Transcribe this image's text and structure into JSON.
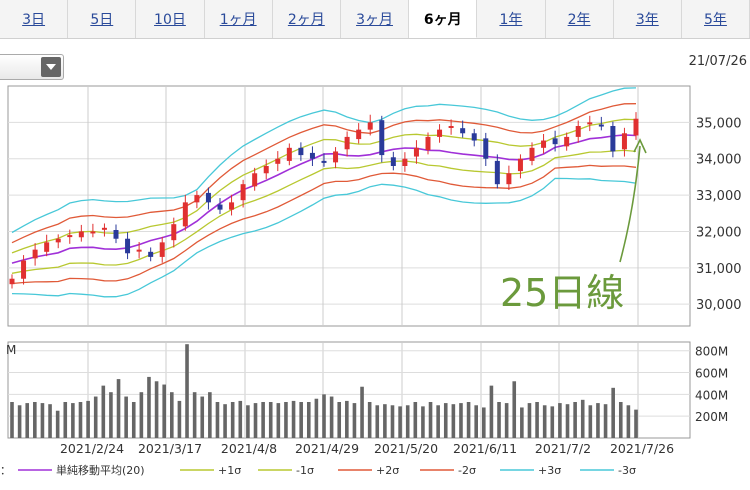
{
  "tabs": [
    {
      "label": "3日",
      "active": false
    },
    {
      "label": "5日",
      "active": false
    },
    {
      "label": "10日",
      "active": false
    },
    {
      "label": "1ヶ月",
      "active": false
    },
    {
      "label": "2ヶ月",
      "active": false
    },
    {
      "label": "3ヶ月",
      "active": false
    },
    {
      "label": "6ヶ月",
      "active": true
    },
    {
      "label": "1年",
      "active": false
    },
    {
      "label": "2年",
      "active": false
    },
    {
      "label": "3年",
      "active": false
    },
    {
      "label": "5年",
      "active": false
    }
  ],
  "header": {
    "date": "21/07/26"
  },
  "annotation": "25日線",
  "chart_data": [
    {
      "type": "candlestick",
      "y_ticks": [
        "35,000",
        "34,000",
        "33,000",
        "32,000",
        "31,000",
        "30,000"
      ],
      "y_tick_values": [
        35000,
        34000,
        33000,
        32000,
        31000,
        30000
      ],
      "ylim": [
        29400,
        36000
      ],
      "x_tick_labels": [
        "2021/2/24",
        "2021/3/17",
        "2021/4/8",
        "2021/4/29",
        "2021/5/20",
        "2021/6/11",
        "2021/7/2",
        "2021/7/26"
      ],
      "close_approx": [
        30700,
        31200,
        31500,
        31700,
        31800,
        31900,
        32000,
        32000,
        32100,
        31800,
        31400,
        31500,
        31300,
        31700,
        32200,
        32800,
        33000,
        32800,
        32600,
        32800,
        33300,
        33600,
        33800,
        34000,
        34300,
        34100,
        34000,
        33900,
        34200,
        34600,
        34800,
        35000,
        34100,
        33800,
        34000,
        34300,
        34600,
        34800,
        34900,
        34700,
        34500,
        34000,
        33300,
        33600,
        34000,
        34300,
        34500,
        34400,
        34600,
        34900,
        35000,
        34900,
        34200,
        34700,
        35100
      ],
      "moving_average_label": "単純移動平均(20)",
      "bands": [
        "+1σ",
        "-1σ",
        "+2σ",
        "-2σ",
        "+3σ",
        "-3σ"
      ],
      "colors": {
        "up": "#e03030",
        "down": "#2a3a9a",
        "ma": "#a030d8",
        "sigma1": "#b8c830",
        "sigma2": "#e05a38",
        "sigma3": "#48c8d8"
      }
    },
    {
      "type": "bar",
      "title": "M",
      "y_ticks": [
        "800M",
        "600M",
        "400M",
        "200M"
      ],
      "y_tick_values": [
        800,
        600,
        400,
        200
      ],
      "ylim": [
        0,
        880
      ],
      "volume_millions_approx": [
        330,
        300,
        320,
        330,
        320,
        310,
        250,
        330,
        320,
        330,
        340,
        380,
        480,
        420,
        540,
        380,
        330,
        420,
        560,
        520,
        490,
        420,
        340,
        860,
        420,
        380,
        420,
        330,
        310,
        330,
        340,
        300,
        320,
        330,
        330,
        320,
        330,
        340,
        330,
        330,
        360,
        400,
        380,
        330,
        340,
        320,
        470,
        330,
        300,
        310,
        300,
        290,
        300,
        330,
        290,
        330,
        300,
        320,
        310,
        320,
        330,
        300,
        280,
        480,
        330,
        320,
        520,
        280,
        320,
        330,
        300,
        290,
        320,
        310,
        330,
        350,
        300,
        320,
        310,
        460,
        330,
        300,
        260
      ]
    }
  ],
  "legend": {
    "prefix": "：",
    "items": [
      {
        "label": "単純移動平均(20)",
        "color": "#a030d8"
      },
      {
        "label": "+1σ",
        "color": "#b8c830"
      },
      {
        "label": "-1σ",
        "color": "#b8c830"
      },
      {
        "label": "+2σ",
        "color": "#e05a38"
      },
      {
        "label": "-2σ",
        "color": "#e05a38"
      },
      {
        "label": "+3σ",
        "color": "#48c8d8"
      },
      {
        "label": "-3σ",
        "color": "#48c8d8"
      }
    ]
  }
}
